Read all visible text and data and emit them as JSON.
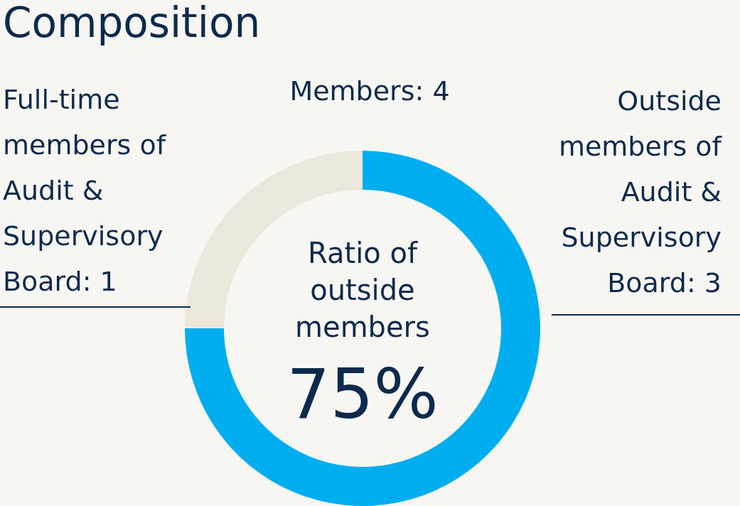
{
  "chart_data": {
    "type": "donut",
    "title": "Composition",
    "categories": [
      "Outside members of Audit & Supervisory Board: 3",
      "Full-time members of Audit & Supervisory Board: 1"
    ],
    "values": [
      3,
      1
    ],
    "colors": [
      "#00aeef",
      "#ebe7dc"
    ],
    "legend": false,
    "annotations": [
      "Members: 4",
      "Ratio of outside members",
      "75%"
    ]
  }
}
